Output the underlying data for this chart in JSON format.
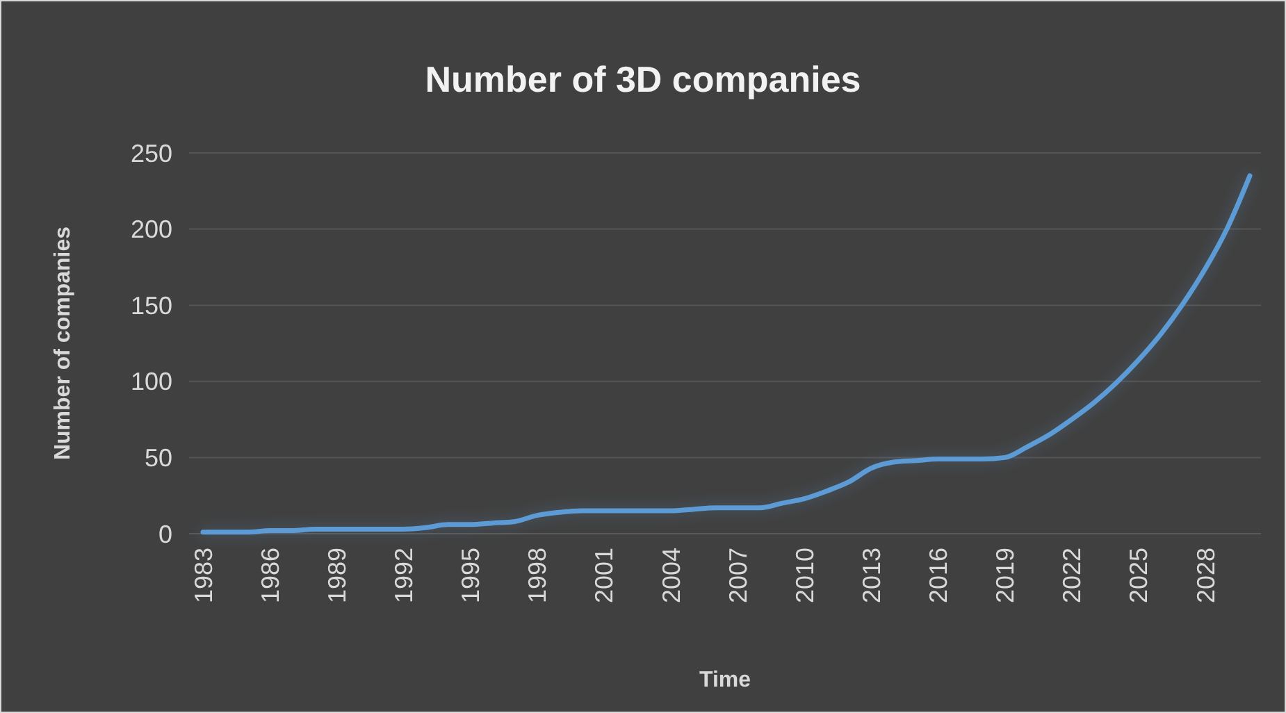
{
  "chart_data": {
    "type": "line",
    "title": "Number of 3D companies",
    "xlabel": "Time",
    "ylabel": "Number of companies",
    "categories": [
      "1983",
      null,
      null,
      "1986",
      null,
      null,
      "1989",
      null,
      null,
      "1992",
      null,
      null,
      "1995",
      null,
      null,
      "1998",
      null,
      null,
      "2001",
      null,
      null,
      "2004",
      null,
      null,
      "2007",
      null,
      null,
      "2010",
      null,
      null,
      "2013",
      null,
      null,
      "2016",
      null,
      null,
      "2019",
      null,
      null,
      "2022",
      null,
      null,
      "2025",
      null,
      null,
      "2028",
      null,
      null
    ],
    "series": [
      {
        "color": "#5b9bd5",
        "values": [
          1,
          1,
          1,
          2,
          2,
          3,
          3,
          3,
          3,
          3,
          4,
          6,
          6,
          7,
          8,
          12,
          14,
          15,
          15,
          15,
          15,
          15,
          16,
          17,
          17,
          17,
          20,
          23,
          28,
          34,
          43,
          47,
          48,
          49,
          49,
          49,
          50,
          57,
          65,
          75,
          86,
          99,
          114,
          131,
          151,
          174,
          201,
          235
        ]
      }
    ],
    "ylim": [
      0,
      250
    ],
    "yticks": [
      0,
      50,
      100,
      150,
      200,
      250
    ],
    "grid": "y",
    "marker": "none",
    "line_style": "solid"
  }
}
